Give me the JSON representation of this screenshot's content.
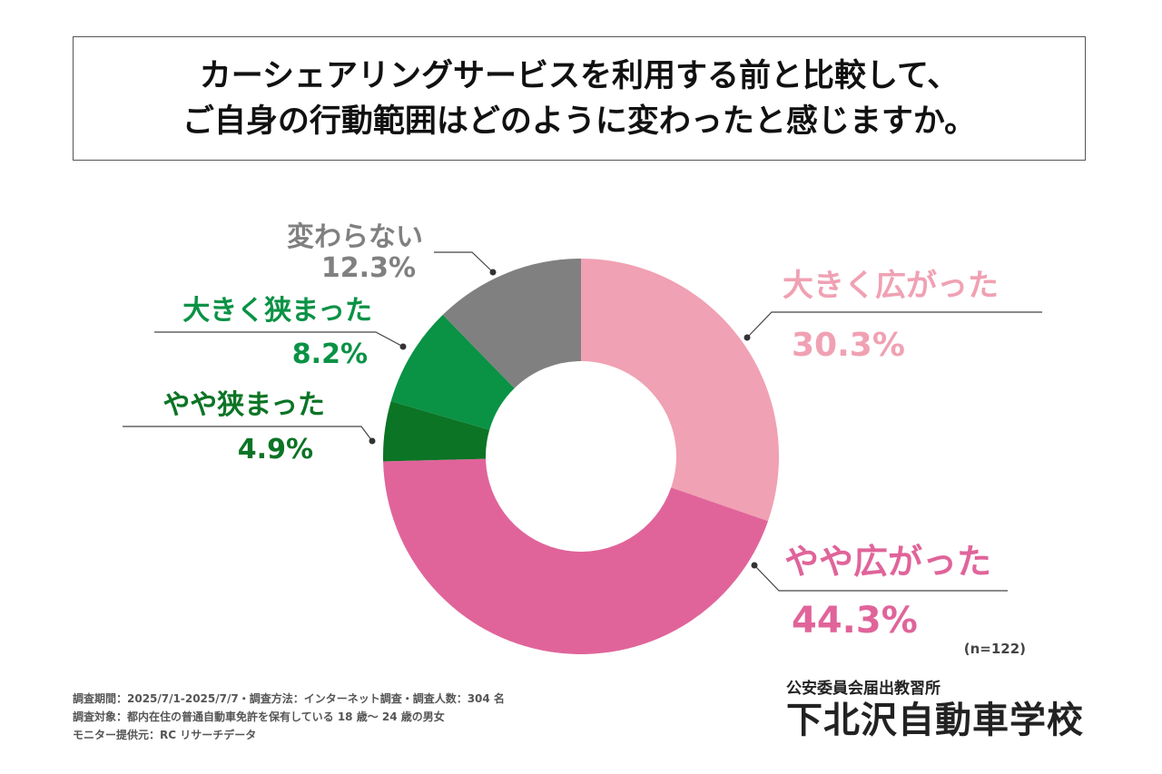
{
  "title": {
    "line1": "カーシェアリングサービスを利用する前と比較して、",
    "line2": "ご自身の行動範囲はどのように変わったと感じますか。"
  },
  "chart_data": {
    "type": "pie",
    "donut": true,
    "start": "top",
    "direction": "clockwise",
    "sample_size_label": "(n=122)",
    "slices": [
      {
        "label": "大きく広がった",
        "value": 30.3,
        "value_label": "30.3%",
        "color": "#f0a1b3",
        "text_color": "#f0a1b3"
      },
      {
        "label": "やや広がった",
        "value": 44.3,
        "value_label": "44.3%",
        "color": "#e0649a",
        "text_color": "#e0649a"
      },
      {
        "label": "やや狭まった",
        "value": 4.9,
        "value_label": "4.9%",
        "color": "#0c7425",
        "text_color": "#0c7425"
      },
      {
        "label": "大きく狭まった",
        "value": 8.2,
        "value_label": "8.2%",
        "color": "#0a9245",
        "text_color": "#0a9245"
      },
      {
        "label": "変わらない",
        "value": 12.3,
        "value_label": "12.3%",
        "color": "#808080",
        "text_color": "#808080"
      }
    ]
  },
  "footer": {
    "line1": "調査期間：2025/7/1-2025/7/7・調査方法：インターネット調査・調査人数：304 名",
    "line2": "調査対象：都内在住の普通自動車免許を保有している 18 歳〜 24 歳の男女",
    "line3": "モニター提供元：RC リサーチデータ"
  },
  "brand": {
    "subtitle": "公安委員会届出教習所",
    "name": "下北沢自動車学校"
  }
}
